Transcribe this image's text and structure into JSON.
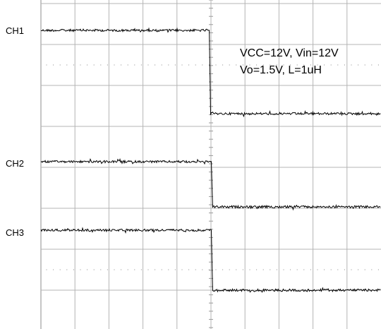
{
  "chart_data": {
    "type": "line",
    "title": "",
    "annotations": [
      "VCC=12V, Vin=12V",
      "Vo=1.5V, L=1uH"
    ],
    "grid": true,
    "series": [
      {
        "name": "CH1",
        "x": [
          0,
          4.95,
          4.99,
          10
        ],
        "y": [
          1,
          1,
          0,
          0
        ]
      },
      {
        "name": "CH2",
        "x": [
          0,
          5.01,
          5.05,
          10
        ],
        "y": [
          1,
          1,
          0,
          0
        ]
      },
      {
        "name": "CH3",
        "x": [
          0,
          5.01,
          5.05,
          10
        ],
        "y": [
          1,
          1,
          0,
          0
        ]
      }
    ]
  }
}
